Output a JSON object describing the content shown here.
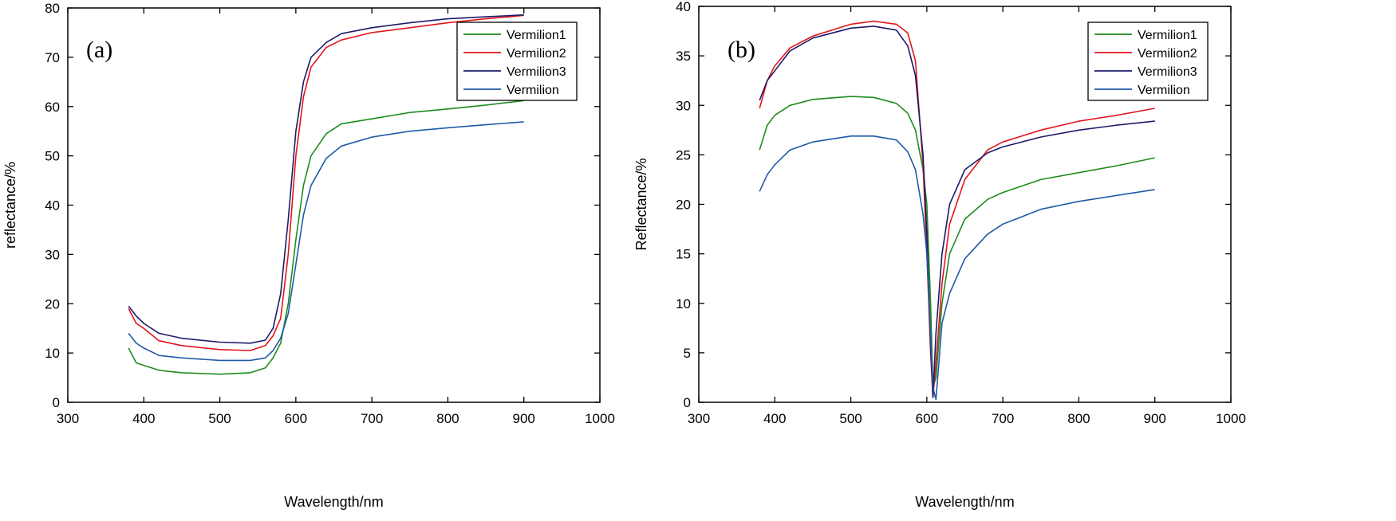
{
  "chart_data": [
    {
      "type": "line",
      "panel_label": "(a)",
      "xlabel": "Wavelength/nm",
      "ylabel": "reflectance/%",
      "xlim": [
        300,
        1000
      ],
      "ylim": [
        0,
        80
      ],
      "xticks": [
        300,
        400,
        500,
        600,
        700,
        800,
        900,
        1000
      ],
      "yticks": [
        0,
        10,
        20,
        30,
        40,
        50,
        60,
        70,
        80
      ],
      "grid": false,
      "legend": "top-right",
      "x": [
        380,
        390,
        400,
        420,
        450,
        500,
        540,
        560,
        570,
        580,
        590,
        600,
        610,
        620,
        640,
        660,
        700,
        750,
        800,
        850,
        900
      ],
      "series": [
        {
          "name": "Vermilion1",
          "color": "#1e8c1e",
          "values": [
            11,
            8,
            7.5,
            6.5,
            6,
            5.7,
            6,
            7,
            9,
            12,
            20,
            33,
            44,
            50,
            54.5,
            56.5,
            57.5,
            58.8,
            59.5,
            60.3,
            61.2
          ]
        },
        {
          "name": "Vermilion2",
          "color": "#e3161b",
          "values": [
            19,
            16,
            15,
            12.5,
            11.5,
            10.7,
            10.5,
            11.5,
            13.5,
            17,
            30,
            50,
            62,
            68,
            72,
            73.5,
            75,
            76,
            77,
            77.8,
            78.5
          ]
        },
        {
          "name": "Vermilion3",
          "color": "#1b1b6b",
          "values": [
            19.5,
            17.5,
            16,
            14,
            13,
            12.2,
            12,
            12.6,
            15,
            22,
            37,
            55,
            65,
            70,
            73,
            74.8,
            76,
            77,
            77.8,
            78.2,
            78.6
          ]
        },
        {
          "name": "Vermilion",
          "color": "#1f5aa6",
          "values": [
            14,
            12,
            11,
            9.5,
            9,
            8.5,
            8.5,
            9,
            10.5,
            13,
            18,
            28,
            38,
            44,
            49.5,
            52,
            53.8,
            55,
            55.7,
            56.3,
            56.9
          ]
        }
      ]
    },
    {
      "type": "line",
      "panel_label": "(b)",
      "xlabel": "Wavelength/nm",
      "ylabel": "Reflectance/%",
      "xlim": [
        300,
        1000
      ],
      "ylim": [
        0,
        40
      ],
      "xticks": [
        300,
        400,
        500,
        600,
        700,
        800,
        900,
        1000
      ],
      "yticks": [
        0,
        5,
        10,
        15,
        20,
        25,
        30,
        35,
        40
      ],
      "grid": false,
      "legend": "top-right",
      "x": [
        380,
        390,
        400,
        420,
        450,
        500,
        530,
        560,
        575,
        585,
        595,
        600,
        605,
        608,
        612,
        620,
        630,
        650,
        680,
        700,
        750,
        800,
        850,
        900
      ],
      "series": [
        {
          "name": "Vermilion1",
          "color": "#1e8c1e",
          "values": [
            25.5,
            28,
            29,
            30,
            30.6,
            30.9,
            30.8,
            30.2,
            29.2,
            27.5,
            23.5,
            20,
            10,
            1.5,
            2.5,
            10,
            15,
            18.5,
            20.5,
            21.2,
            22.5,
            23.2,
            23.9,
            24.7
          ]
        },
        {
          "name": "Vermilion2",
          "color": "#e3161b",
          "values": [
            29.7,
            32.5,
            34,
            35.8,
            37,
            38.2,
            38.5,
            38.2,
            37.3,
            34.5,
            24,
            15,
            5,
            0.5,
            4,
            12,
            18,
            22.5,
            25.5,
            26.3,
            27.5,
            28.4,
            29,
            29.7
          ]
        },
        {
          "name": "Vermilion3",
          "color": "#1b1b6b",
          "values": [
            30.5,
            32.5,
            33.5,
            35.5,
            36.8,
            37.8,
            38,
            37.6,
            36,
            33,
            25,
            17,
            6,
            0.5,
            7,
            15,
            20,
            23.5,
            25.2,
            25.8,
            26.8,
            27.5,
            28,
            28.4
          ]
        },
        {
          "name": "Vermilion",
          "color": "#1f5aa6",
          "values": [
            21.3,
            23,
            24,
            25.5,
            26.3,
            26.9,
            26.9,
            26.5,
            25.3,
            23.5,
            19,
            15,
            7,
            1.5,
            0.3,
            8,
            11,
            14.5,
            17,
            18,
            19.5,
            20.3,
            20.9,
            21.5
          ]
        }
      ]
    }
  ]
}
